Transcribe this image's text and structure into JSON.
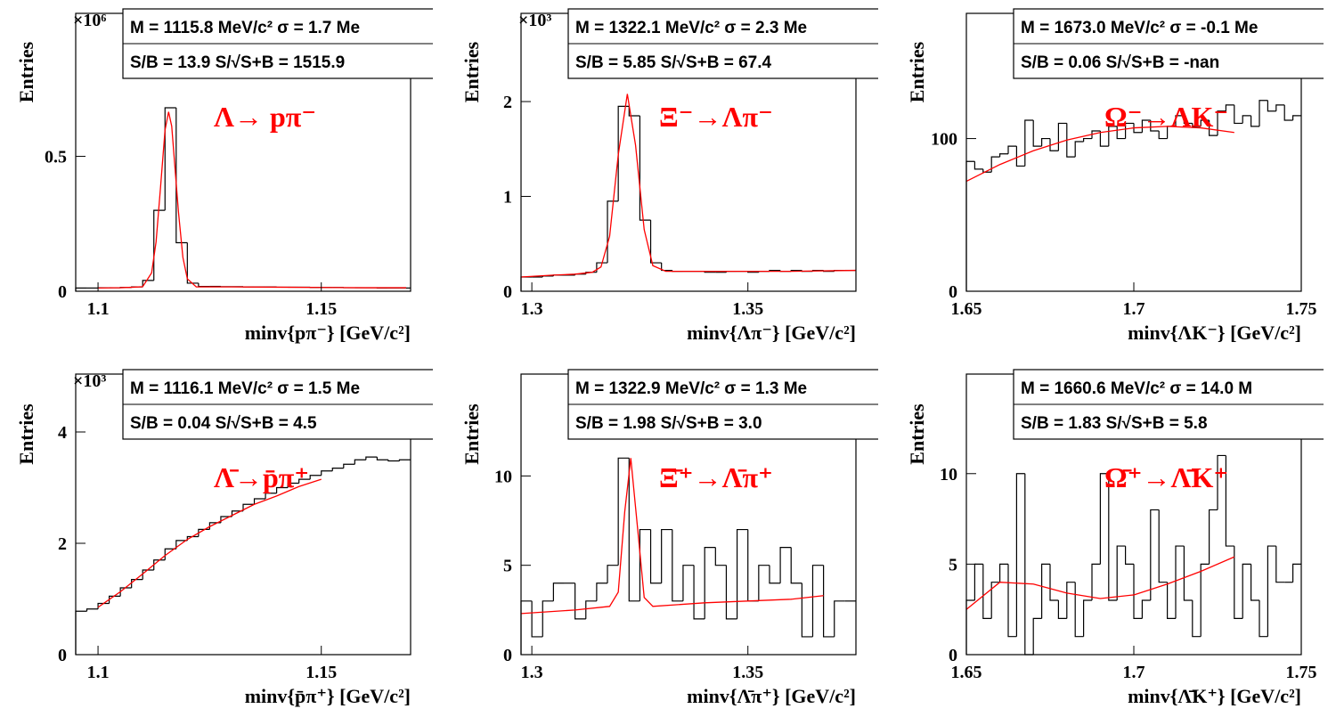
{
  "chart_data": [
    {
      "type": "histogram",
      "exponent": "×10⁶",
      "ylabel": "Entries",
      "xlabel": "minv{pπ⁻} [GeV/c²]",
      "annotation": "Λ→ pπ⁻",
      "stats": [
        "M = 1115.8 MeV/c² σ = 1.7 Me",
        "S/B = 13.9   S/√S+B = 1515.9"
      ],
      "color": "#000000",
      "xlim": [
        1.095,
        1.17
      ],
      "ylim": [
        0,
        1.03
      ],
      "xticks": [
        1.1,
        1.15
      ],
      "yticks": [
        0,
        0.5
      ],
      "bins": [
        1.095,
        1.0975,
        1.1,
        1.1025,
        1.105,
        1.1075,
        1.11,
        1.1125,
        1.115,
        1.1175,
        1.12,
        1.1225,
        1.125,
        1.1275,
        1.13,
        1.1325,
        1.135,
        1.1375,
        1.14,
        1.1425,
        1.145,
        1.1475,
        1.15,
        1.1525,
        1.155,
        1.1575,
        1.16,
        1.1625,
        1.165,
        1.1675,
        1.17
      ],
      "values": [
        0.012,
        0.012,
        0.013,
        0.013,
        0.014,
        0.016,
        0.04,
        0.3,
        0.68,
        0.18,
        0.03,
        0.018,
        0.018,
        0.017,
        0.017,
        0.016,
        0.016,
        0.016,
        0.015,
        0.015,
        0.015,
        0.014,
        0.014,
        0.014,
        0.013,
        0.013,
        0.013,
        0.012,
        0.012,
        0.012
      ],
      "fit": {
        "color": "#ff0000",
        "x": [
          1.1,
          1.105,
          1.108,
          1.11,
          1.112,
          1.113,
          1.114,
          1.115,
          1.1158,
          1.1165,
          1.118,
          1.119,
          1.12,
          1.122,
          1.125,
          1.13,
          1.14,
          1.15,
          1.16,
          1.169
        ],
        "values": [
          0.012,
          0.013,
          0.015,
          0.017,
          0.068,
          0.183,
          0.386,
          0.597,
          0.665,
          0.612,
          0.296,
          0.126,
          0.046,
          0.016,
          0.016,
          0.016,
          0.015,
          0.014,
          0.013,
          0.013
        ]
      }
    },
    {
      "type": "histogram",
      "exponent": "×10³",
      "ylabel": "Entries",
      "xlabel": "minv{Λπ⁻} [GeV/c²]",
      "annotation": "Ξ⁻→Λπ⁻",
      "stats": [
        "M = 1322.1 MeV/c² σ = 2.3 Me",
        "S/B = 5.85   S/√S+B = 67.4"
      ],
      "color": "#000000",
      "xlim": [
        1.2975,
        1.375
      ],
      "ylim": [
        0,
        2.93
      ],
      "xticks": [
        1.3,
        1.35
      ],
      "yticks": [
        0,
        1,
        2
      ],
      "bins": [
        1.2975,
        1.3,
        1.3025,
        1.305,
        1.3075,
        1.31,
        1.3125,
        1.315,
        1.3175,
        1.32,
        1.3225,
        1.325,
        1.3275,
        1.33,
        1.3325,
        1.335,
        1.3375,
        1.34,
        1.3425,
        1.345,
        1.3475,
        1.35,
        1.3525,
        1.355,
        1.3575,
        1.36,
        1.3625,
        1.365,
        1.3675,
        1.37,
        1.3725,
        1.375
      ],
      "values": [
        0.15,
        0.15,
        0.16,
        0.17,
        0.17,
        0.18,
        0.2,
        0.3,
        0.95,
        1.95,
        1.85,
        0.75,
        0.3,
        0.22,
        0.21,
        0.21,
        0.21,
        0.2,
        0.2,
        0.21,
        0.21,
        0.2,
        0.21,
        0.22,
        0.21,
        0.22,
        0.21,
        0.22,
        0.21,
        0.22,
        0.22
      ],
      "fit": {
        "color": "#ff0000",
        "x": [
          1.2975,
          1.305,
          1.31,
          1.314,
          1.316,
          1.318,
          1.32,
          1.3221,
          1.324,
          1.326,
          1.328,
          1.331,
          1.34,
          1.35,
          1.36,
          1.375
        ],
        "values": [
          0.15,
          0.17,
          0.18,
          0.2,
          0.256,
          0.58,
          1.44,
          2.08,
          1.54,
          0.65,
          0.27,
          0.21,
          0.21,
          0.21,
          0.21,
          0.22
        ]
      }
    },
    {
      "type": "histogram",
      "ylabel": "Entries",
      "xlabel": "minv{ΛK⁻} [GeV/c²]",
      "annotation": "Ω⁻→ΛK⁻",
      "stats": [
        "M = 1673.0 MeV/c² σ = -0.1 Me",
        "S/B = 0.06   S/√S+B = -nan"
      ],
      "color": "#000000",
      "xlim": [
        1.65,
        1.75
      ],
      "ylim": [
        0,
        182
      ],
      "xticks": [
        1.65,
        1.7,
        1.75
      ],
      "yticks": [
        0,
        100
      ],
      "bins": [
        1.65,
        1.6525,
        1.655,
        1.6575,
        1.66,
        1.6625,
        1.665,
        1.6675,
        1.67,
        1.6725,
        1.675,
        1.6775,
        1.68,
        1.6825,
        1.685,
        1.6875,
        1.69,
        1.6925,
        1.695,
        1.6975,
        1.7,
        1.7025,
        1.705,
        1.7075,
        1.71,
        1.7125,
        1.715,
        1.7175,
        1.72,
        1.7225,
        1.725,
        1.7275,
        1.73,
        1.7325,
        1.735,
        1.7375,
        1.74,
        1.7425,
        1.745,
        1.7475,
        1.75
      ],
      "values": [
        85,
        80,
        78,
        88,
        90,
        95,
        82,
        112,
        95,
        100,
        92,
        110,
        88,
        98,
        100,
        105,
        95,
        108,
        100,
        110,
        104,
        112,
        105,
        100,
        108,
        115,
        110,
        108,
        112,
        102,
        118,
        122,
        110,
        115,
        108,
        125,
        118,
        122,
        112,
        115
      ],
      "fit": {
        "color": "#ff0000",
        "x": [
          1.65,
          1.66,
          1.67,
          1.68,
          1.69,
          1.7,
          1.71,
          1.72,
          1.73
        ],
        "values": [
          72,
          83,
          92,
          99,
          104,
          107,
          108,
          107,
          104
        ]
      }
    },
    {
      "type": "histogram",
      "exponent": "×10³",
      "ylabel": "Entries",
      "xlabel": "minv{p̄π⁺} [GeV/c²]",
      "annotation": "Λ̄→p̄π⁺",
      "stats": [
        "M = 1116.1 MeV/c² σ = 1.5 Me",
        "S/B = 0.04   S/√S+B = 4.5"
      ],
      "color": "#000000",
      "xlim": [
        1.095,
        1.17
      ],
      "ylim": [
        0,
        5.04
      ],
      "xticks": [
        1.1,
        1.15
      ],
      "yticks": [
        0,
        2,
        4
      ],
      "bins": [
        1.095,
        1.0975,
        1.1,
        1.1025,
        1.105,
        1.1075,
        1.11,
        1.1125,
        1.115,
        1.1175,
        1.12,
        1.1225,
        1.125,
        1.1275,
        1.13,
        1.1325,
        1.135,
        1.1375,
        1.14,
        1.1425,
        1.145,
        1.1475,
        1.15,
        1.1525,
        1.155,
        1.1575,
        1.16,
        1.1625,
        1.165,
        1.1675,
        1.17
      ],
      "values": [
        0.78,
        0.82,
        0.92,
        1.05,
        1.2,
        1.35,
        1.52,
        1.7,
        1.9,
        2.05,
        2.12,
        2.25,
        2.37,
        2.48,
        2.58,
        2.7,
        2.8,
        2.9,
        3,
        3.08,
        3.15,
        3.22,
        3.3,
        3.35,
        3.42,
        3.5,
        3.55,
        3.5,
        3.48,
        3.5
      ],
      "fit": {
        "color": "#ff0000",
        "x": [
          1.1,
          1.105,
          1.11,
          1.115,
          1.12,
          1.125,
          1.13,
          1.135,
          1.14,
          1.145,
          1.15
        ],
        "values": [
          0.85,
          1.13,
          1.45,
          1.78,
          2.07,
          2.3,
          2.5,
          2.7,
          2.85,
          3.02,
          3.15
        ]
      }
    },
    {
      "type": "histogram",
      "ylabel": "Entries",
      "xlabel": "minv{Λ̄π⁺} [GeV/c²]",
      "annotation": "Ξ̄⁺→Λ̄π⁺",
      "stats": [
        "M = 1322.9 MeV/c² σ = 1.3 Me",
        "S/B = 1.98   S/√S+B = 3.0"
      ],
      "color": "#000000",
      "xlim": [
        1.2975,
        1.375
      ],
      "ylim": [
        0,
        15.7
      ],
      "xticks": [
        1.3,
        1.35
      ],
      "yticks": [
        0,
        5,
        10
      ],
      "bins": [
        1.2975,
        1.3,
        1.3025,
        1.305,
        1.3075,
        1.31,
        1.3125,
        1.315,
        1.3175,
        1.32,
        1.3225,
        1.325,
        1.3275,
        1.33,
        1.3325,
        1.335,
        1.3375,
        1.34,
        1.3425,
        1.345,
        1.3475,
        1.35,
        1.3525,
        1.355,
        1.3575,
        1.36,
        1.3625,
        1.365,
        1.3675,
        1.37,
        1.3725,
        1.375
      ],
      "values": [
        3,
        1,
        3,
        4,
        4,
        2,
        3,
        4,
        5,
        11,
        3,
        7,
        4,
        7,
        3,
        5,
        2,
        6,
        5,
        2,
        7,
        3,
        5,
        4,
        6,
        4,
        1,
        5,
        1,
        3,
        3
      ],
      "fit": {
        "color": "#ff0000",
        "x": [
          1.2975,
          1.31,
          1.318,
          1.32,
          1.3215,
          1.3229,
          1.3245,
          1.326,
          1.328,
          1.34,
          1.36,
          1.3675
        ],
        "values": [
          2.3,
          2.5,
          2.7,
          3.5,
          8,
          11,
          7,
          3.2,
          2.7,
          2.9,
          3.1,
          3.3
        ]
      }
    },
    {
      "type": "histogram",
      "ylabel": "Entries",
      "xlabel": "minv{Λ̄K⁺} [GeV/c²]",
      "annotation": "Ω̄⁺→Λ̄K⁺",
      "stats": [
        "M = 1660.6 MeV/c² σ = 14.0 M",
        "S/B = 1.83   S/√S+B = 5.8"
      ],
      "color": "#000000",
      "xlim": [
        1.65,
        1.75
      ],
      "ylim": [
        0,
        15.5
      ],
      "xticks": [
        1.65,
        1.7,
        1.75
      ],
      "yticks": [
        0,
        5,
        10
      ],
      "bins": [
        1.65,
        1.6525,
        1.655,
        1.6575,
        1.66,
        1.6625,
        1.665,
        1.6675,
        1.67,
        1.6725,
        1.675,
        1.6775,
        1.68,
        1.6825,
        1.685,
        1.6875,
        1.69,
        1.6925,
        1.695,
        1.6975,
        1.7,
        1.7025,
        1.705,
        1.7075,
        1.71,
        1.7125,
        1.715,
        1.7175,
        1.72,
        1.7225,
        1.725,
        1.7275,
        1.73,
        1.7325,
        1.735,
        1.7375,
        1.74,
        1.7425,
        1.745,
        1.7475,
        1.75
      ],
      "values": [
        3,
        5,
        2,
        4,
        5,
        1,
        10,
        0,
        2,
        5,
        3,
        2,
        4,
        1,
        3,
        5,
        10,
        3,
        6,
        5,
        2,
        3,
        8,
        4,
        2,
        6,
        3,
        1,
        5,
        8,
        11,
        6,
        2,
        5,
        3,
        1,
        6,
        4,
        4,
        5
      ],
      "fit": {
        "color": "#ff0000",
        "x": [
          1.65,
          1.66,
          1.67,
          1.68,
          1.69,
          1.7,
          1.71,
          1.72,
          1.73
        ],
        "values": [
          2.5,
          4,
          3.9,
          3.4,
          3.1,
          3.3,
          3.9,
          4.6,
          5.4
        ]
      }
    }
  ]
}
